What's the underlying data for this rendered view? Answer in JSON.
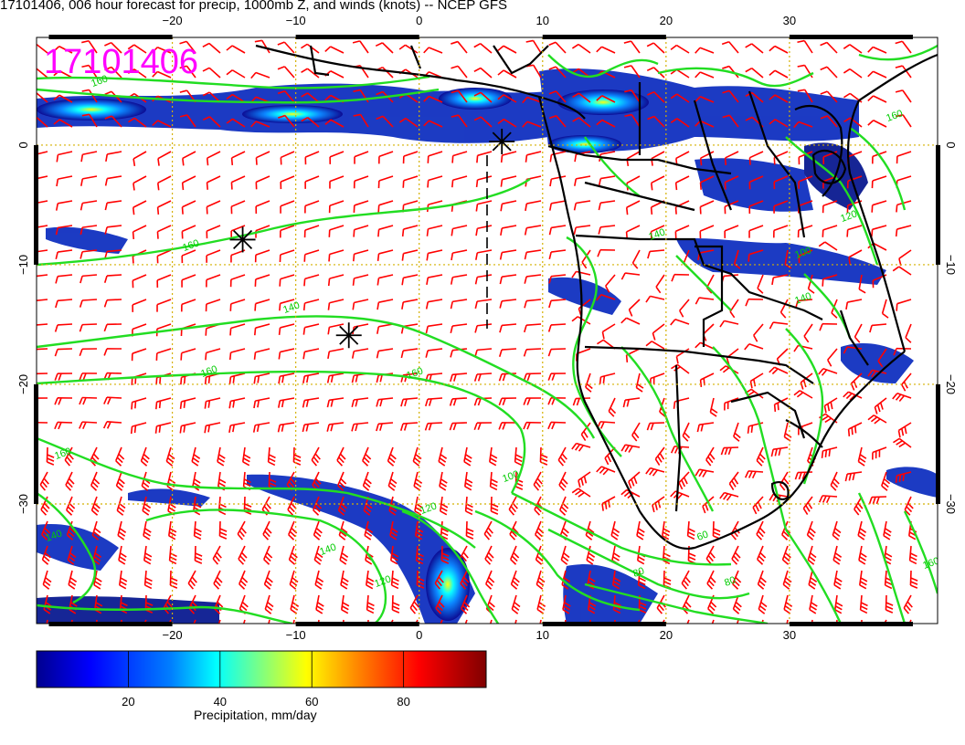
{
  "title": "17101406, 006 hour forecast for precip, 1000mb Z, and winds (knots) -- NCEP GFS",
  "stamp": "17101406",
  "map": {
    "lon_range": [
      -31,
      42
    ],
    "lat_range": [
      -40,
      9
    ],
    "lon_ticks": [
      "−20",
      "−10",
      "0",
      "10",
      "20",
      "30"
    ],
    "lat_ticks": [
      "0",
      "−10",
      "−20",
      "−30"
    ],
    "grid": true,
    "contour_color": "#22dd22",
    "barb_color": "#ff0000",
    "coast_color": "#000000",
    "contour_labels": [
      "160",
      "160",
      "140",
      "160",
      "160",
      "160",
      "140",
      "140",
      "120",
      "120",
      "100",
      "80",
      "80",
      "60",
      "160",
      "120",
      "100",
      "140",
      "140",
      "160"
    ],
    "markers": [
      {
        "symbol": "asterisk",
        "lon": 6.7,
        "lat": 0.3
      },
      {
        "symbol": "asterisk",
        "lon": -14.3,
        "lat": -7.9
      },
      {
        "symbol": "asterisk",
        "lon": -5.7,
        "lat": -15.9
      }
    ]
  },
  "colorbar": {
    "title": "Precipitation, mm/day",
    "ticks": [
      "20",
      "40",
      "60",
      "80"
    ],
    "colors": [
      "#00008f",
      "#0000ff",
      "#0080ff",
      "#00ffff",
      "#80ff80",
      "#ffff00",
      "#ff8000",
      "#ff0000",
      "#800000"
    ]
  }
}
